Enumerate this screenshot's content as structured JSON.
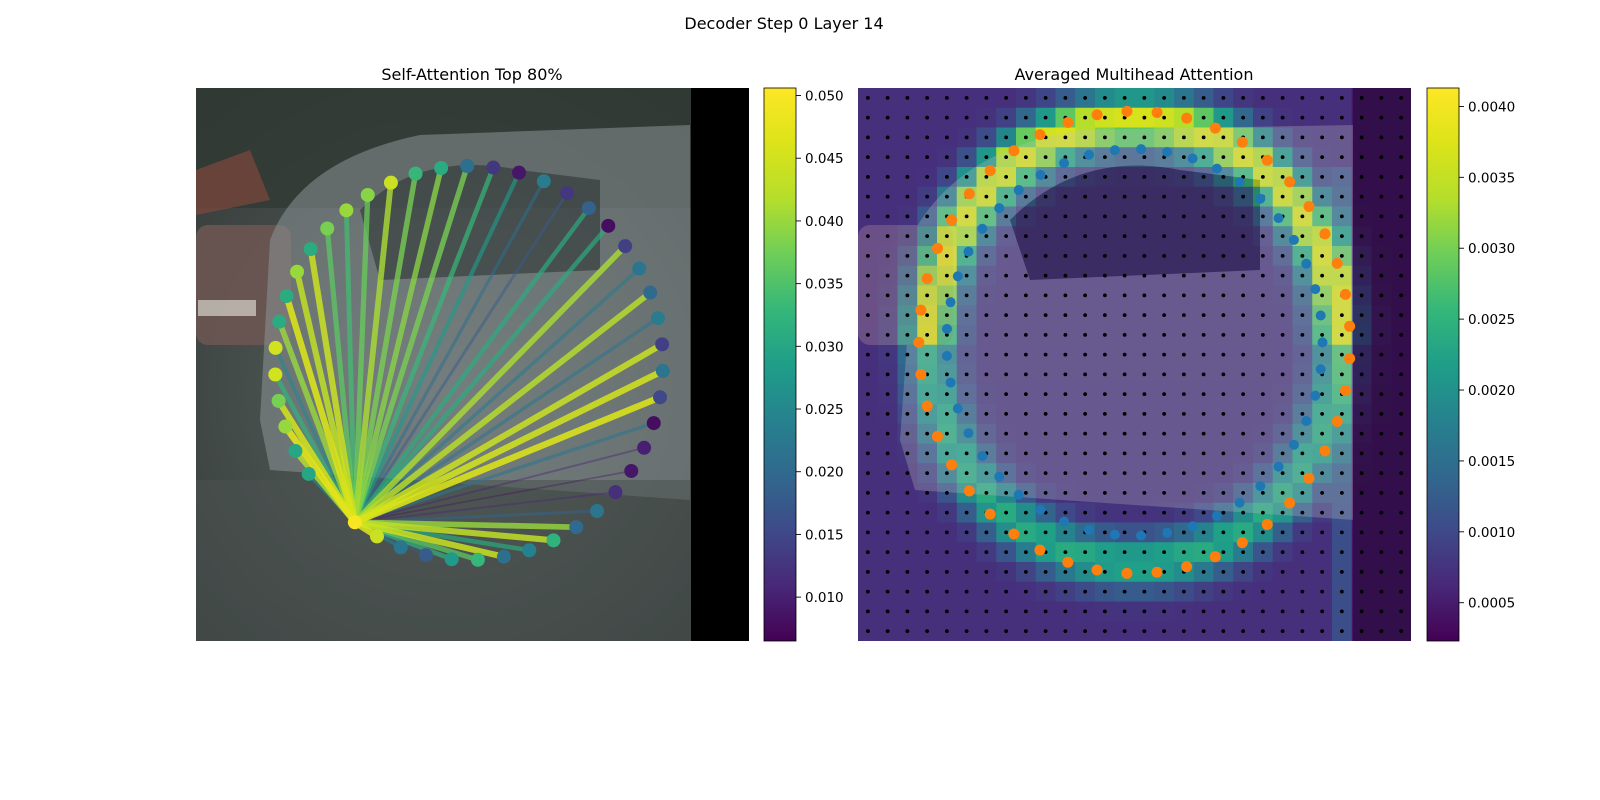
{
  "figure": {
    "suptitle": "Decoder Step 0 Layer 14"
  },
  "chart_data": [
    {
      "type": "graph",
      "title": "Self-Attention Top 80%",
      "colormap": "viridis",
      "colorbar": {
        "vmin": 0.0065,
        "vmax": 0.0506,
        "ticks": [
          "0.010",
          "0.015",
          "0.020",
          "0.025",
          "0.030",
          "0.035",
          "0.040",
          "0.045",
          "0.050"
        ]
      },
      "node_count": 45,
      "source_node": 0,
      "source_value": 0.05,
      "edge_values": [
        0.05,
        0.046,
        0.024,
        0.018,
        0.032,
        0.036,
        0.044,
        0.031,
        0.043,
        0.04,
        0.019,
        0.011,
        0.008,
        0.01,
        0.022,
        0.046,
        0.045,
        0.044,
        0.022,
        0.042,
        0.023,
        0.041,
        0.031,
        0.031,
        0.018,
        0.021,
        0.028,
        0.033,
        0.038,
        0.039,
        0.038,
        0.041,
        0.037,
        0.034,
        0.036,
        0.044,
        0.043,
        0.046,
        0.04,
        0.025,
        0.032,
        0.045,
        0.047,
        0.042,
        0.026
      ],
      "node_values": [
        0.05,
        0.044,
        0.022,
        0.018,
        0.028,
        0.033,
        0.021,
        0.024,
        0.032,
        0.02,
        0.022,
        0.012,
        0.009,
        0.01,
        0.008,
        0.015,
        0.022,
        0.014,
        0.023,
        0.02,
        0.022,
        0.014,
        0.008,
        0.019,
        0.013,
        0.023,
        0.009,
        0.013,
        0.021,
        0.031,
        0.033,
        0.044,
        0.039,
        0.04,
        0.038,
        0.031,
        0.04,
        0.031,
        0.031,
        0.045,
        0.045,
        0.038,
        0.04,
        0.03,
        0.03
      ],
      "legend": []
    },
    {
      "type": "heatmap",
      "title": "Averaged Multihead Attention",
      "colormap": "viridis",
      "colorbar": {
        "vmin": 0.00023,
        "vmax": 0.00413,
        "ticks": [
          "0.0005",
          "0.0010",
          "0.0015",
          "0.0020",
          "0.0025",
          "0.0030",
          "0.0035",
          "0.0040"
        ]
      },
      "grid": {
        "rows": 28,
        "cols": 28,
        "range": [
          0,
          1
        ]
      },
      "reference_series": {
        "name": "",
        "color": "#1f77b4",
        "points": 45
      },
      "predicted_series": {
        "name": "",
        "color": "#ff7f0e",
        "points": 45
      },
      "legend": []
    }
  ]
}
